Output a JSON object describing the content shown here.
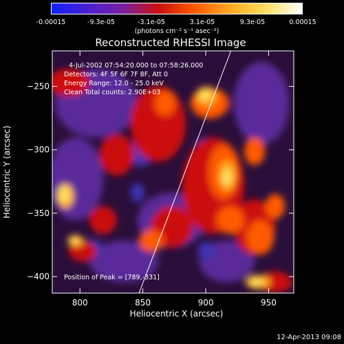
{
  "colorbar": {
    "ticks": [
      "-0.00015",
      "-9.3e-05",
      "-3.1e-05",
      "3.1e-05",
      "9.3e-05",
      "0.00015"
    ],
    "units": "(photons cm⁻² s⁻¹ asec⁻²)",
    "colors": [
      "#1020ff",
      "#4a20d0",
      "#7a1fa0",
      "#cc1010",
      "#ff5a00",
      "#ffaa20",
      "#ffe060",
      "#ffffff"
    ]
  },
  "info": {
    "time_range": "4-Jul-2002 07:54:20.000 to 07:58:26.000",
    "detectors": "Detectors: 4F 5F 6F 7F 8F, Att 0",
    "energy": "Energy Range: 12.0 - 25.0 keV",
    "clean": "Clean    Total counts: 2.90E+03",
    "peak": "Position of Peak = [789,-331]"
  },
  "footer": "12-Apr-2013 09:08",
  "chart_data": {
    "type": "heatmap",
    "title": "Reconstructed RHESSI Image",
    "xlabel": "Heliocentric X (arcsec)",
    "ylabel": "Heliocentric Y (arcsec)",
    "xlim": [
      778,
      970
    ],
    "ylim": [
      -413,
      -222
    ],
    "xticks": [
      800,
      850,
      900,
      950
    ],
    "yticks": [
      -250,
      -300,
      -350,
      -400
    ],
    "limb_line": [
      [
        847,
        -413
      ],
      [
        920,
        -222
      ]
    ],
    "peak": [
      789,
      -331
    ]
  }
}
